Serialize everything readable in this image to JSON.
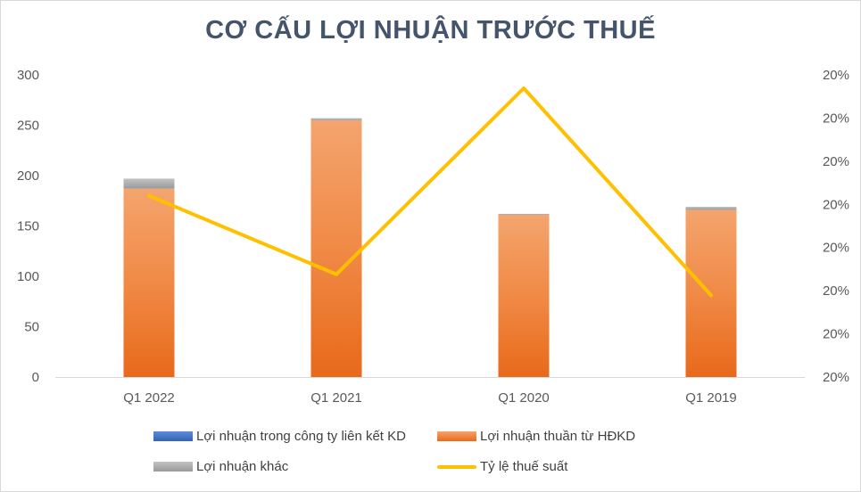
{
  "chart_data": {
    "type": "bar",
    "title": "CƠ CẤU LỢI NHUẬN TRƯỚC THUẾ",
    "categories": [
      "Q1 2022",
      "Q1 2021",
      "Q1 2020",
      "Q1 2019"
    ],
    "ylim": [
      0,
      300
    ],
    "y_ticks": [
      "0",
      "50",
      "100",
      "150",
      "200",
      "250",
      "300"
    ],
    "y2_ticks": [
      "20%",
      "20%",
      "20%",
      "20%",
      "20%",
      "20%",
      "20%",
      "20%"
    ],
    "stacked": true,
    "series": [
      {
        "name": "Lợi nhuận trong công ty liên kết KD",
        "type": "bar",
        "color": "#4472c4",
        "values": [
          0,
          0,
          0,
          0
        ]
      },
      {
        "name": "Lợi nhuận thuần từ HĐKD",
        "type": "bar",
        "color": "#ed7d31",
        "values": [
          187,
          255,
          161,
          166
        ]
      },
      {
        "name": "Lợi nhuận khác",
        "type": "bar",
        "color": "#a5a5a5",
        "values": [
          10,
          2,
          1,
          3
        ]
      },
      {
        "name": "Tỷ lệ thuế suất",
        "type": "line",
        "axis": "right",
        "color": "#ffc000",
        "values": [
          0.6,
          0.34,
          1.0,
          0.27
        ]
      }
    ],
    "grid": false,
    "legend_position": "bottom"
  }
}
